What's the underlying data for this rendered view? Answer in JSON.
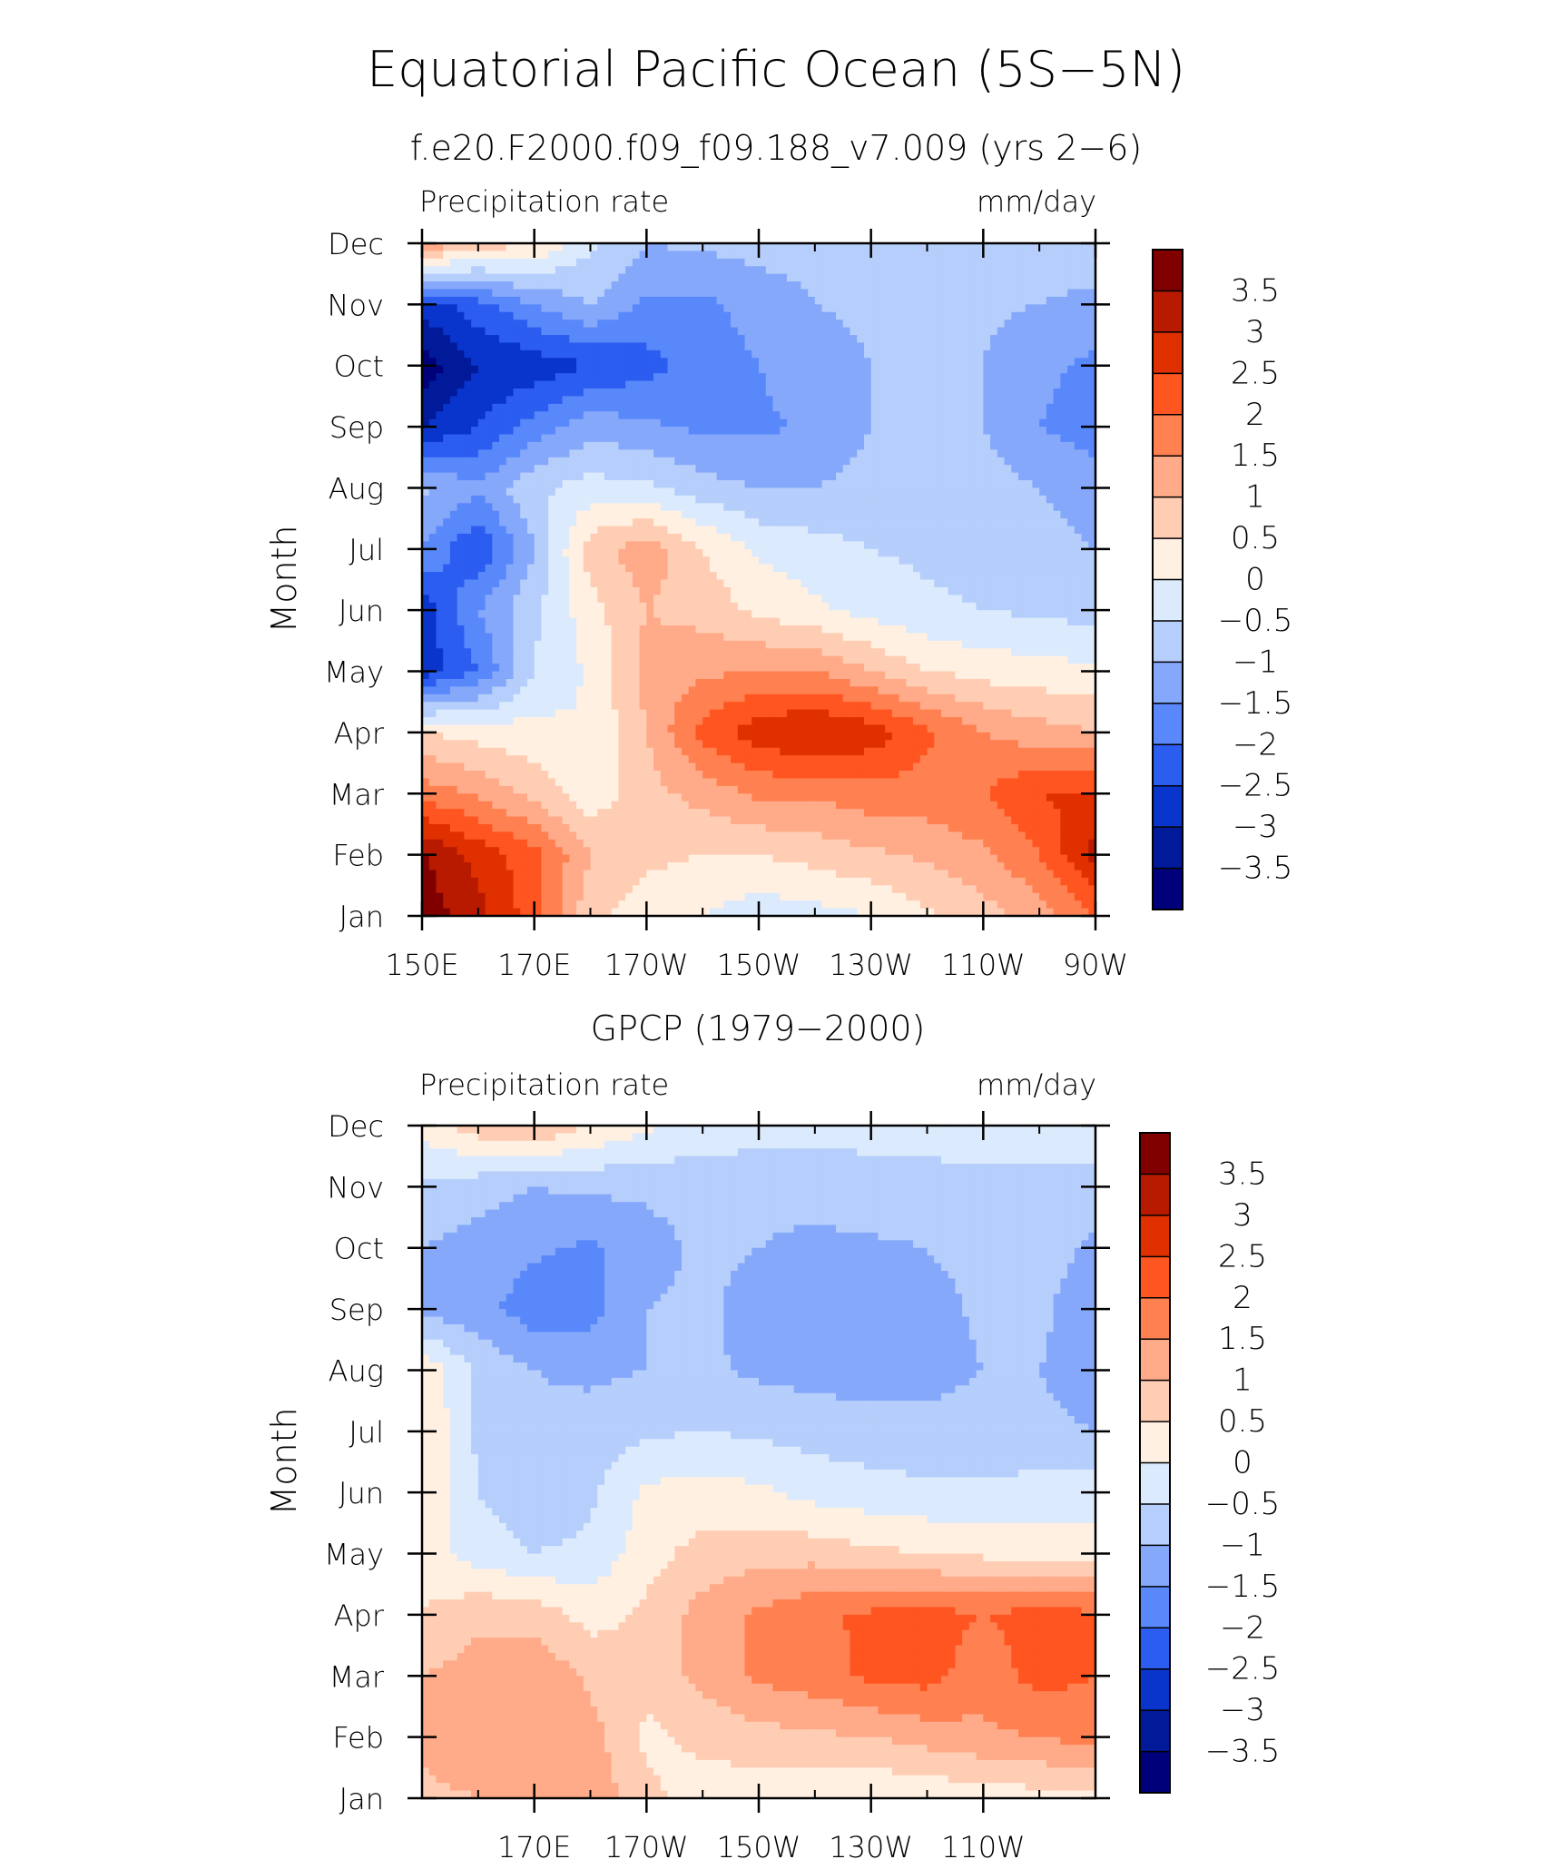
{
  "main_title": "Equatorial Pacific Ocean (5S−5N)",
  "colorbar": {
    "labels": [
      "3.5",
      "3",
      "2.5",
      "2",
      "1.5",
      "1",
      "0.5",
      "0",
      "−0.5",
      "−1",
      "−1.5",
      "−2",
      "−2.5",
      "−3",
      "−3.5"
    ],
    "colors_top_to_bottom": [
      "#800000",
      "#b81a00",
      "#e03000",
      "#ff5520",
      "#ff8050",
      "#ffaa88",
      "#ffcdb3",
      "#fff0e2",
      "#dbeafc",
      "#b5cefb",
      "#86a8fb",
      "#5888fa",
      "#2b5df0",
      "#0a35cc",
      "#001a99",
      "#00007a"
    ]
  },
  "panels": [
    {
      "title": "f.e20.F2000.f09_f09.188_v7.009 (yrs 2−6)",
      "left_label": "Precipitation rate",
      "right_label": "mm/day",
      "ylabel": "Month",
      "yticks": [
        "Jan",
        "Feb",
        "Mar",
        "Apr",
        "May",
        "Jun",
        "Jul",
        "Aug",
        "Sep",
        "Oct",
        "Nov",
        "Dec"
      ],
      "xticks": [
        "150E",
        "170E",
        "170W",
        "150W",
        "130W",
        "110W",
        "90W"
      ]
    },
    {
      "title": "GPCP (1979−2000)",
      "left_label": "Precipitation rate",
      "right_label": "mm/day",
      "ylabel": "Month",
      "yticks": [
        "Jan",
        "Feb",
        "Mar",
        "Apr",
        "May",
        "Jun",
        "Jul",
        "Aug",
        "Sep",
        "Oct",
        "Nov",
        "Dec"
      ],
      "xticks": [
        "170E",
        "170W",
        "150W",
        "130W",
        "110W"
      ]
    }
  ],
  "chart_data": [
    {
      "type": "heatmap",
      "title": "f.e20.F2000.f09_f09.188_v7.009 (yrs 2−6)",
      "ylabel": "Month",
      "units": "mm/day",
      "x": [
        150,
        160,
        170,
        180,
        190,
        200,
        210,
        220,
        230,
        240,
        250,
        260,
        270
      ],
      "y": [
        "Jan",
        "Feb",
        "Mar",
        "Apr",
        "May",
        "Jun",
        "Jul",
        "Aug",
        "Sep",
        "Oct",
        "Nov",
        "Dec"
      ],
      "z": [
        [
          3.8,
          3.2,
          2.2,
          0.6,
          0.3,
          0.0,
          -0.3,
          -0.2,
          0.0,
          0.4,
          0.8,
          1.2,
          2.0
        ],
        [
          3.6,
          2.8,
          2.2,
          1.0,
          0.6,
          0.5,
          0.5,
          0.7,
          0.9,
          1.1,
          1.4,
          2.0,
          3.2
        ],
        [
          1.8,
          1.4,
          0.8,
          0.2,
          0.8,
          1.2,
          1.6,
          1.6,
          1.8,
          1.8,
          2.0,
          2.5,
          2.6
        ],
        [
          0.5,
          0.3,
          0.2,
          0.0,
          1.0,
          2.2,
          2.8,
          3.1,
          2.8,
          2.1,
          1.5,
          1.2,
          1.0
        ],
        [
          -2.8,
          -2.0,
          -0.5,
          0.1,
          1.2,
          1.4,
          1.5,
          1.5,
          1.0,
          0.5,
          0.3,
          0.2,
          0.1
        ],
        [
          -2.8,
          -1.5,
          -0.6,
          0.3,
          1.0,
          0.8,
          0.4,
          0.1,
          -0.2,
          -0.4,
          -0.5,
          -0.6,
          -0.7
        ],
        [
          -1.5,
          -2.5,
          -1.0,
          0.8,
          1.3,
          0.5,
          -0.1,
          -0.3,
          -0.5,
          -0.6,
          -0.7,
          -0.8,
          -1.0
        ],
        [
          -0.9,
          -1.4,
          -0.6,
          -0.3,
          -0.4,
          -0.8,
          -1.0,
          -1.0,
          -0.8,
          -0.7,
          -0.8,
          -1.0,
          -1.3
        ],
        [
          -3.0,
          -2.5,
          -1.8,
          -1.2,
          -1.4,
          -1.6,
          -1.6,
          -1.4,
          -1.0,
          -0.9,
          -1.0,
          -1.5,
          -1.7
        ],
        [
          -3.8,
          -3.0,
          -2.8,
          -2.5,
          -2.2,
          -1.8,
          -1.5,
          -1.2,
          -1.0,
          -0.9,
          -1.0,
          -1.4,
          -1.6
        ],
        [
          -2.8,
          -2.2,
          -1.5,
          -1.0,
          -1.6,
          -1.6,
          -1.3,
          -1.0,
          -0.9,
          -0.9,
          -0.9,
          -1.0,
          -1.2
        ],
        [
          1.5,
          0.8,
          0.5,
          -0.4,
          -1.0,
          -0.9,
          -0.8,
          -0.8,
          -0.7,
          -0.7,
          -0.6,
          -0.6,
          -0.5
        ]
      ],
      "levels": [
        -3.5,
        -3,
        -2.5,
        -2,
        -1.5,
        -1,
        -0.5,
        0,
        0.5,
        1,
        1.5,
        2,
        2.5,
        3,
        3.5
      ]
    },
    {
      "type": "heatmap",
      "title": "GPCP (1979−2000)",
      "ylabel": "Month",
      "units": "mm/day",
      "x": [
        150,
        160,
        170,
        180,
        190,
        200,
        210,
        220,
        230,
        240,
        250,
        260,
        270
      ],
      "y": [
        "Jan",
        "Feb",
        "Mar",
        "Apr",
        "May",
        "Jun",
        "Jul",
        "Aug",
        "Sep",
        "Oct",
        "Nov",
        "Dec"
      ],
      "z": [
        [
          0.9,
          1.0,
          1.2,
          1.4,
          0.6,
          0.3,
          0.2,
          0.1,
          0.0,
          0.1,
          0.2,
          0.3,
          0.4
        ],
        [
          1.1,
          1.3,
          1.4,
          1.2,
          0.4,
          0.6,
          0.8,
          0.9,
          1.0,
          1.2,
          1.4,
          1.5,
          1.7
        ],
        [
          1.0,
          1.2,
          1.4,
          0.9,
          0.6,
          1.2,
          1.6,
          1.8,
          2.1,
          2.2,
          1.7,
          2.2,
          2.0
        ],
        [
          0.5,
          0.9,
          0.8,
          0.3,
          0.6,
          1.2,
          1.6,
          1.9,
          2.1,
          2.2,
          2.0,
          2.2,
          2.1
        ],
        [
          0.3,
          -0.3,
          -0.5,
          -0.4,
          0.3,
          0.7,
          0.8,
          0.8,
          0.6,
          0.5,
          0.4,
          0.3,
          0.2
        ],
        [
          0.5,
          -0.5,
          -0.8,
          -0.6,
          0.1,
          0.2,
          0.1,
          -0.2,
          -0.3,
          -0.4,
          -0.4,
          -0.3,
          -0.2
        ],
        [
          0.5,
          -0.6,
          -0.9,
          -0.8,
          -0.6,
          -0.5,
          -0.6,
          -0.7,
          -0.8,
          -0.8,
          -0.8,
          -0.9,
          -1.0
        ],
        [
          0.4,
          -0.6,
          -1.0,
          -1.1,
          -1.0,
          -0.9,
          -1.1,
          -1.2,
          -1.2,
          -1.2,
          -1.0,
          -1.0,
          -1.2
        ],
        [
          -1.2,
          -1.3,
          -1.8,
          -1.7,
          -1.0,
          -0.9,
          -1.2,
          -1.3,
          -1.3,
          -1.2,
          -0.9,
          -0.9,
          -1.3
        ],
        [
          -1.0,
          -1.2,
          -1.4,
          -1.6,
          -1.2,
          -0.9,
          -1.0,
          -1.2,
          -1.1,
          -1.0,
          -0.8,
          -0.8,
          -1.1
        ],
        [
          -0.6,
          -0.8,
          -1.0,
          -0.9,
          -0.9,
          -0.8,
          -0.8,
          -0.7,
          -0.6,
          -0.6,
          -0.6,
          -0.6,
          -0.7
        ],
        [
          0.2,
          0.8,
          1.0,
          0.5,
          0.1,
          -0.2,
          -0.3,
          -0.4,
          -0.4,
          -0.4,
          -0.3,
          -0.3,
          -0.2
        ]
      ],
      "levels": [
        -3.5,
        -3,
        -2.5,
        -2,
        -1.5,
        -1,
        -0.5,
        0,
        0.5,
        1,
        1.5,
        2,
        2.5,
        3,
        3.5
      ]
    }
  ]
}
